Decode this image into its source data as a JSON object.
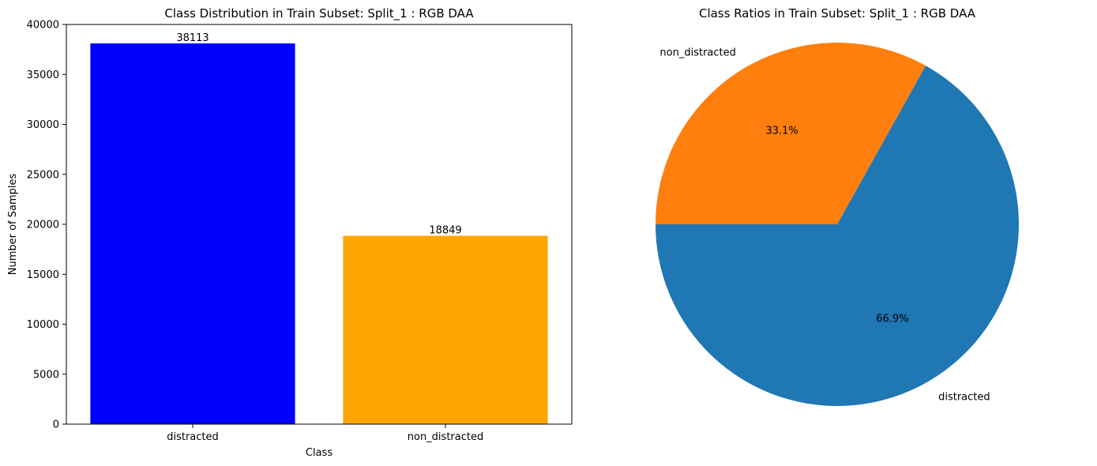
{
  "chart_data": [
    {
      "type": "bar",
      "title": "Class Distribution in Train Subset: Split_1 : RGB DAA",
      "xlabel": "Class",
      "ylabel": "Number of Samples",
      "categories": [
        "distracted",
        "non_distracted"
      ],
      "values": [
        38113,
        18849
      ],
      "bar_colors": [
        "#0000ff",
        "#ffa500"
      ],
      "ylim": [
        0,
        40000
      ],
      "yticks": [
        0,
        5000,
        10000,
        15000,
        20000,
        25000,
        30000,
        35000,
        40000
      ],
      "grid": false
    },
    {
      "type": "pie",
      "title": "Class Ratios in Train Subset: Split_1 : RGB DAA",
      "labels": [
        "distracted",
        "non_distracted"
      ],
      "values": [
        66.9,
        33.1
      ],
      "pct_labels": [
        "66.9%",
        "33.1%"
      ],
      "colors": [
        "#1f77b4",
        "#ff7f0e"
      ]
    }
  ]
}
